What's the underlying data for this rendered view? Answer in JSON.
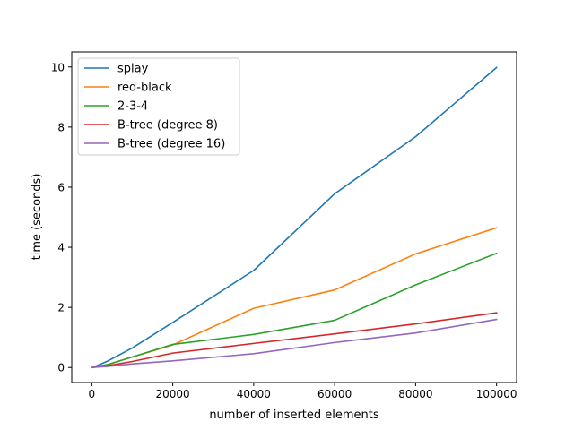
{
  "chart_data": {
    "type": "line",
    "title": "",
    "xlabel": "number of inserted elements",
    "ylabel": "time (seconds)",
    "xlim": [
      -4950,
      104950
    ],
    "ylim": [
      -0.5,
      10.5
    ],
    "xticks": [
      0,
      20000,
      40000,
      60000,
      80000,
      100000
    ],
    "yticks": [
      0,
      2,
      4,
      6,
      8,
      10
    ],
    "grid": false,
    "legend_position": "top-left",
    "series": [
      {
        "name": "splay",
        "color": "#1f77b4",
        "x": [
          0,
          2000,
          4000,
          10000,
          20000,
          40000,
          60000,
          80000,
          100000
        ],
        "y": [
          0,
          0.1,
          0.22,
          0.65,
          1.5,
          3.23,
          5.78,
          7.68,
          9.98
        ]
      },
      {
        "name": "red-black",
        "color": "#ff7f0e",
        "x": [
          0,
          2000,
          4000,
          10000,
          20000,
          40000,
          60000,
          80000,
          100000
        ],
        "y": [
          0,
          0.05,
          0.1,
          0.35,
          0.75,
          1.97,
          2.58,
          3.78,
          4.65
        ]
      },
      {
        "name": "2-3-4",
        "color": "#2ca02c",
        "x": [
          0,
          2000,
          4000,
          10000,
          20000,
          40000,
          60000,
          80000,
          100000
        ],
        "y": [
          0,
          0.05,
          0.1,
          0.35,
          0.77,
          1.1,
          1.57,
          2.75,
          3.8
        ]
      },
      {
        "name": "B-tree (degree 8)",
        "color": "#d62728",
        "x": [
          0,
          2000,
          4000,
          10000,
          20000,
          40000,
          60000,
          80000,
          100000
        ],
        "y": [
          0,
          0.03,
          0.06,
          0.2,
          0.48,
          0.8,
          1.12,
          1.45,
          1.82
        ]
      },
      {
        "name": "B-tree (degree 16)",
        "color": "#9467bd",
        "x": [
          0,
          2000,
          4000,
          10000,
          20000,
          40000,
          60000,
          80000,
          100000
        ],
        "y": [
          0,
          0.02,
          0.04,
          0.12,
          0.22,
          0.46,
          0.83,
          1.15,
          1.6
        ]
      }
    ]
  }
}
